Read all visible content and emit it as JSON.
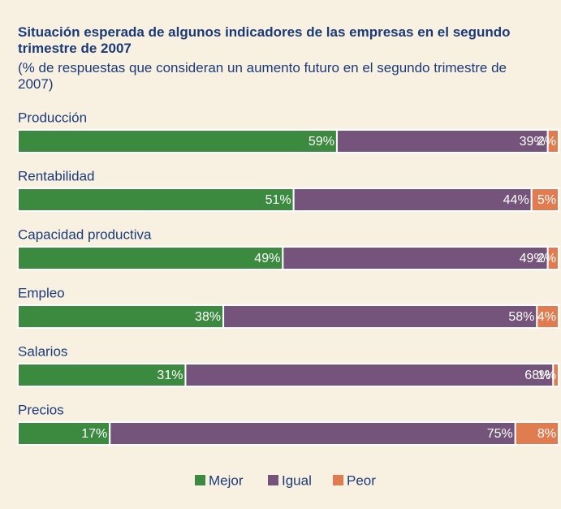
{
  "chart_data": {
    "type": "stacked-bar-horizontal",
    "title": "Situación esperada de algunos indicadores de las empresas en el segundo trimestre de 2007",
    "subtitle": "(% de respuestas que consideran un aumento futuro en el segundo trimestre de 2007)",
    "categories": [
      "Producción",
      "Rentabilidad",
      "Capacidad productiva",
      "Empleo",
      "Salarios",
      "Precios"
    ],
    "xlim": [
      0,
      100
    ],
    "series": [
      {
        "name": "Mejor",
        "color": "#3b8a3f",
        "values": [
          59,
          51,
          49,
          38,
          31,
          17
        ],
        "value_labels": [
          "59%",
          "51%",
          "49%",
          "38%",
          "31%",
          "17%"
        ]
      },
      {
        "name": "Igual",
        "color": "#75547b",
        "values": [
          39,
          44,
          49,
          58,
          68,
          75
        ],
        "value_labels": [
          "39%",
          "44%",
          "49%",
          "58%",
          "68%",
          "75%"
        ]
      },
      {
        "name": "Peor",
        "color": "#e07c50",
        "values": [
          2,
          5,
          2,
          4,
          1,
          8
        ],
        "value_labels": [
          "2%",
          "5%",
          "2%",
          "4%",
          "1%",
          "8%"
        ]
      }
    ]
  }
}
